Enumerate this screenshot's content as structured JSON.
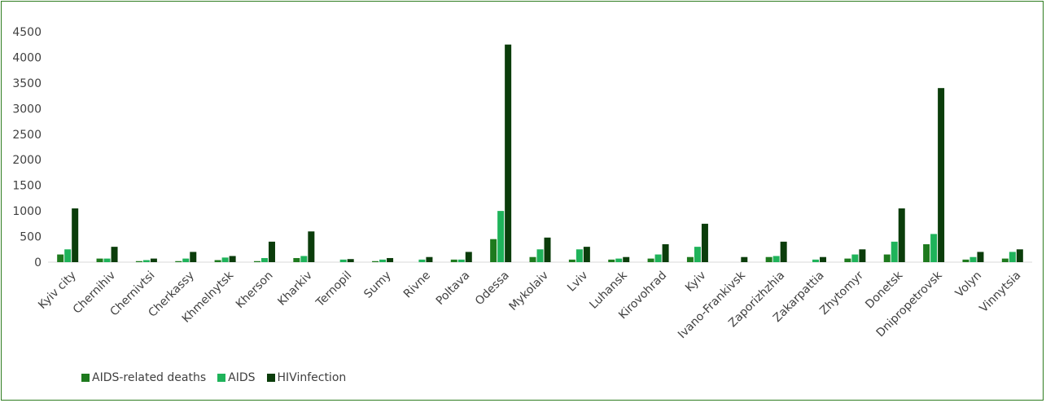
{
  "chart_data": {
    "type": "bar",
    "title": "",
    "xlabel": "",
    "ylabel": "",
    "ylim": [
      0,
      4500
    ],
    "yticks": [
      0,
      500,
      1000,
      1500,
      2000,
      2500,
      3000,
      3500,
      4000,
      4500
    ],
    "grid": false,
    "legend_position": "bottom-left",
    "categories": [
      "Kyiv city",
      "Chernihiv",
      "Chernivtsi",
      "Cherkassy",
      "Khmelnytsk",
      "Kherson",
      "Kharkiv",
      "Ternopil",
      "Sumy",
      "Rivne",
      "Poltava",
      "Odessa",
      "Mykolaiv",
      "Lviv",
      "Luhansk",
      "Kirovohrad",
      "Kyiv",
      "Ivano-Frankivsk",
      "Zaporizhzhia",
      "Zakarpattia",
      "Zhytomyr",
      "Donetsk",
      "Dnipropetrovsk",
      "Volyn",
      "Vinnytsia"
    ],
    "series": [
      {
        "name": "AIDS-related deaths",
        "color": "#1e7a1e",
        "values": [
          150,
          70,
          20,
          20,
          40,
          20,
          80,
          0,
          20,
          0,
          50,
          450,
          100,
          50,
          50,
          70,
          100,
          0,
          100,
          0,
          70,
          150,
          350,
          50,
          70
        ]
      },
      {
        "name": "AIDS",
        "color": "#1fb35a",
        "values": [
          250,
          70,
          40,
          70,
          90,
          80,
          120,
          50,
          50,
          50,
          50,
          1000,
          250,
          250,
          70,
          150,
          300,
          0,
          120,
          50,
          150,
          400,
          550,
          100,
          200
        ]
      },
      {
        "name": "HIVinfection",
        "color": "#0b3d0b",
        "values": [
          1050,
          300,
          70,
          200,
          120,
          400,
          600,
          60,
          80,
          100,
          200,
          4250,
          480,
          300,
          100,
          350,
          750,
          100,
          400,
          100,
          250,
          1050,
          3400,
          200,
          250
        ]
      }
    ]
  }
}
